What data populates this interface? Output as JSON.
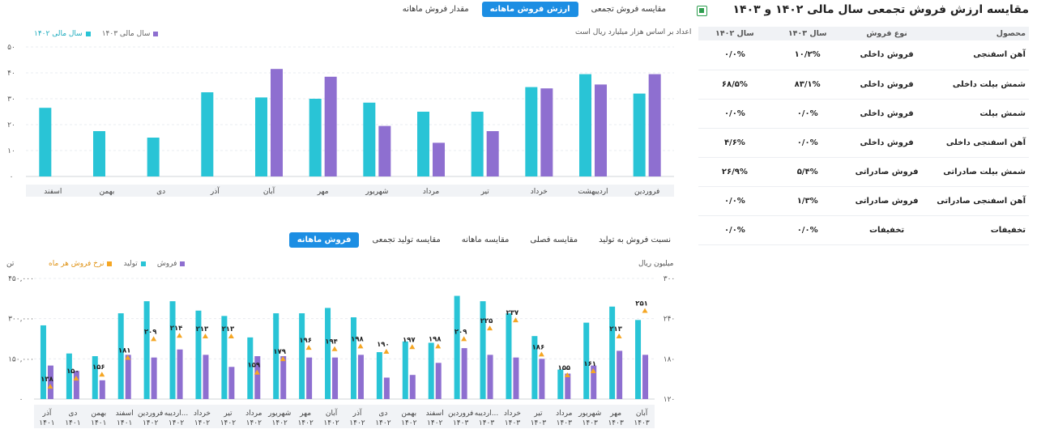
{
  "table_panel": {
    "title": "مقایسه ارزش فروش تجمعی سال مالی ۱۴۰۲ و ۱۴۰۳",
    "icon": "excel-icon",
    "columns": [
      "محصول",
      "نوع فروش",
      "سال ۱۴۰۳",
      "سال ۱۴۰۲"
    ],
    "rows": [
      [
        "آهن اسفنجی",
        "فروش داخلی",
        "۱۰/۲%",
        "۰/۰%"
      ],
      [
        "شمش بیلت داخلی",
        "فروش داخلی",
        "۸۳/۱%",
        "۶۸/۵%"
      ],
      [
        "شمش بیلت",
        "فروش داخلی",
        "۰/۰%",
        "۰/۰%"
      ],
      [
        "آهن اسفنجی داخلی",
        "فروش داخلی",
        "۰/۰%",
        "۴/۶%"
      ],
      [
        "شمش بیلت صادراتی",
        "فروش صادراتی",
        "۵/۴%",
        "۲۶/۹%"
      ],
      [
        "آهن اسفنجی صادراتی",
        "فروش صادراتی",
        "۱/۳%",
        "۰/۰%"
      ],
      [
        "تخفیفات",
        "تخفیفات",
        "۰/۰%",
        "۰/۰%"
      ]
    ]
  },
  "top_tabs": [
    {
      "label": "مقدار فروش ماهانه",
      "active": false
    },
    {
      "label": "ارزش فروش ماهانه",
      "active": true
    },
    {
      "label": "مقایسه فروش تجمعی",
      "active": false
    }
  ],
  "bottom_tabs": [
    {
      "label": "فروش ماهانه",
      "active": true
    },
    {
      "label": "مقایسه تولید تجمعی",
      "active": false
    },
    {
      "label": "مقایسه ماهانه",
      "active": false
    },
    {
      "label": "مقایسه فصلی",
      "active": false
    },
    {
      "label": "نسبت فروش به تولید",
      "active": false
    }
  ],
  "chart_data": [
    {
      "type": "bar",
      "subtitle": "اعداد بر اساس هزار میلیارد ریال است",
      "categories": [
        "فروردین",
        "اردیبهشت",
        "خرداد",
        "تیر",
        "مرداد",
        "شهریور",
        "مهر",
        "آبان",
        "آذر",
        "دی",
        "بهمن",
        "اسفند"
      ],
      "series": [
        {
          "name": "سال مالی ۱۴۰۲",
          "color": "#29c4d6",
          "values": [
            32,
            39.5,
            34.5,
            25,
            25,
            28.5,
            30,
            30.5,
            32.5,
            15,
            17.5,
            26.5
          ]
        },
        {
          "name": "سال مالی ۱۴۰۳",
          "color": "#8e6fd0",
          "values": [
            39.5,
            35.5,
            34,
            17.5,
            13,
            19.5,
            38.5,
            41.5,
            0,
            0,
            0,
            0
          ]
        }
      ],
      "ylim": [
        0,
        50
      ],
      "yticks": [
        "۰",
        "۱۰",
        "۲۰",
        "۳۰",
        "۴۰",
        "۵۰"
      ],
      "grid": true,
      "legend": "top-left"
    },
    {
      "type": "bar",
      "unit_left": "تن",
      "unit_right": "میلیون ریال",
      "categories": [
        [
          "آذر",
          "۱۴۰۱"
        ],
        [
          "دی",
          "۱۴۰۱"
        ],
        [
          "بهمن",
          "۱۴۰۱"
        ],
        [
          "اسفند",
          "۱۴۰۱"
        ],
        [
          "فروردین",
          "۱۴۰۲"
        ],
        [
          "اردیبه...",
          "۱۴۰۲"
        ],
        [
          "خرداد",
          "۱۴۰۲"
        ],
        [
          "تیر",
          "۱۴۰۲"
        ],
        [
          "مرداد",
          "۱۴۰۲"
        ],
        [
          "شهریور",
          "۱۴۰۲"
        ],
        [
          "مهر",
          "۱۴۰۲"
        ],
        [
          "آبان",
          "۱۴۰۲"
        ],
        [
          "آذر",
          "۱۴۰۲"
        ],
        [
          "دی",
          "۱۴۰۲"
        ],
        [
          "بهمن",
          "۱۴۰۲"
        ],
        [
          "اسفند",
          "۱۴۰۲"
        ],
        [
          "فروردین",
          "۱۴۰۳"
        ],
        [
          "اردیبه...",
          "۱۴۰۳"
        ],
        [
          "خرداد",
          "۱۴۰۳"
        ],
        [
          "تیر",
          "۱۴۰۳"
        ],
        [
          "مرداد",
          "۱۴۰۳"
        ],
        [
          "شهریور",
          "۱۴۰۳"
        ],
        [
          "مهر",
          "۱۴۰۳"
        ],
        [
          "آبان",
          "۱۴۰۳"
        ]
      ],
      "series": [
        {
          "name": "تولید",
          "color": "#29c4d6",
          "values": [
            275000,
            170000,
            160000,
            320000,
            365000,
            365000,
            330000,
            310000,
            230000,
            320000,
            320000,
            340000,
            305000,
            175000,
            215000,
            210000,
            385000,
            365000,
            320000,
            235000,
            110000,
            285000,
            345000,
            295000
          ]
        },
        {
          "name": "فروش",
          "color": "#8e6fd0",
          "values": [
            125000,
            105000,
            70000,
            165000,
            155000,
            185000,
            165000,
            120000,
            160000,
            160000,
            155000,
            155000,
            165000,
            80000,
            90000,
            135000,
            190000,
            165000,
            155000,
            150000,
            95000,
            125000,
            180000,
            165000
          ]
        },
        {
          "name": "نرخ فروش هر ماه",
          "color": "#f5a623",
          "marker": "triangle",
          "values": [
            138,
            150,
            156,
            181,
            209,
            214,
            213,
            213,
            159,
            179,
            196,
            194,
            198,
            190,
            197,
            198,
            209,
            225,
            237,
            186,
            155,
            161,
            213,
            251
          ]
        }
      ],
      "data_labels": [
        "۱۳۸",
        "۱۵۰",
        "۱۵۶",
        "۱۸۱",
        "۲۰۹",
        "۲۱۴",
        "۲۱۳",
        "۲۱۳",
        "۱۵۹",
        "۱۷۹",
        "۱۹۶",
        "۱۹۴",
        "۱۹۸",
        "۱۹۰",
        "۱۹۷",
        "۱۹۸",
        "۲۰۹",
        "۲۲۵",
        "۲۳۷",
        "۱۸۶",
        "۱۵۵",
        "۱۶۱",
        "۲۱۳",
        "۲۵۱"
      ],
      "ylim_left": [
        0,
        450000
      ],
      "yticks_left": [
        "۰",
        "۱۵۰,۰۰۰",
        "۳۰۰,۰۰۰",
        "۴۵۰,۰۰۰"
      ],
      "ylim_right": [
        120,
        300
      ],
      "yticks_right": [
        "۱۲۰",
        "۱۸۰",
        "۲۴۰",
        "۳۰۰"
      ],
      "grid": true,
      "legend": "top-left"
    }
  ]
}
